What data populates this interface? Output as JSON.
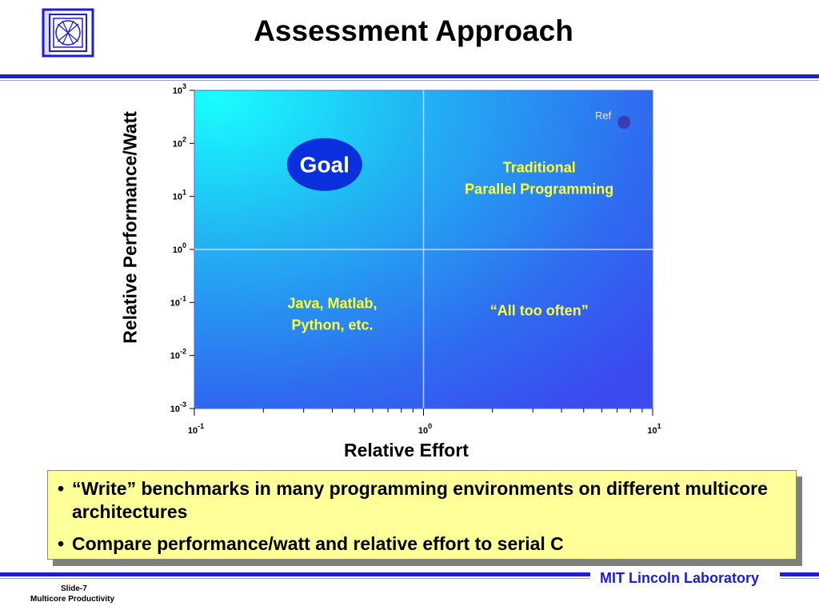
{
  "slide": {
    "title": "Assessment Approach",
    "footer_brand": "MIT Lincoln Laboratory",
    "slide_number": "Slide-7",
    "footer_subtitle": "Multicore Productivity"
  },
  "bullets": [
    "“Write” benchmarks in many programming environments on different multicore architectures",
    "Compare performance/watt and relative effort to serial C"
  ],
  "colors": {
    "accent_blue": "#1d1dd6",
    "callout_fill": "#ffff99",
    "region_text": "#ffff33",
    "goal_fill": "#0a2fdc",
    "ref_point": "#3b3bb3"
  },
  "chart_data": {
    "type": "scatter",
    "xlabel": "Relative Effort",
    "ylabel": "Relative Performance/Watt",
    "x_scale": "log",
    "y_scale": "log",
    "xlim": [
      0.1,
      10
    ],
    "ylim": [
      0.001,
      1000
    ],
    "x_ticks": [
      {
        "value": 0.1,
        "base": "10",
        "exp": "-1"
      },
      {
        "value": 1,
        "base": "10",
        "exp": "0"
      },
      {
        "value": 10,
        "base": "10",
        "exp": "1"
      }
    ],
    "y_ticks": [
      {
        "value": 1000,
        "base": "10",
        "exp": "3"
      },
      {
        "value": 100,
        "base": "10",
        "exp": "2"
      },
      {
        "value": 10,
        "base": "10",
        "exp": "1"
      },
      {
        "value": 1,
        "base": "10",
        "exp": "0"
      },
      {
        "value": 0.1,
        "base": "10",
        "exp": "-1"
      },
      {
        "value": 0.01,
        "base": "10",
        "exp": "-2"
      },
      {
        "value": 0.001,
        "base": "10",
        "exp": "-3"
      }
    ],
    "divider_lines": {
      "x": 1,
      "y": 1
    },
    "points": [
      {
        "label": "Ref",
        "x": 7.5,
        "y": 250
      }
    ],
    "regions": [
      {
        "id": "goal",
        "text": "Goal",
        "x": 0.37,
        "y": 40,
        "style": "ellipse"
      },
      {
        "id": "traditional",
        "lines": [
          "Traditional",
          "Parallel Programming"
        ],
        "x": 3.2,
        "y": 22,
        "style": "text"
      },
      {
        "id": "java",
        "lines": [
          "Java, Matlab,",
          "Python, etc."
        ],
        "x": 0.4,
        "y": 0.06,
        "style": "text"
      },
      {
        "id": "too-often",
        "lines": [
          "“All too often”"
        ],
        "x": 3.2,
        "y": 0.07,
        "style": "text"
      }
    ],
    "grid": false,
    "legend": "none"
  }
}
